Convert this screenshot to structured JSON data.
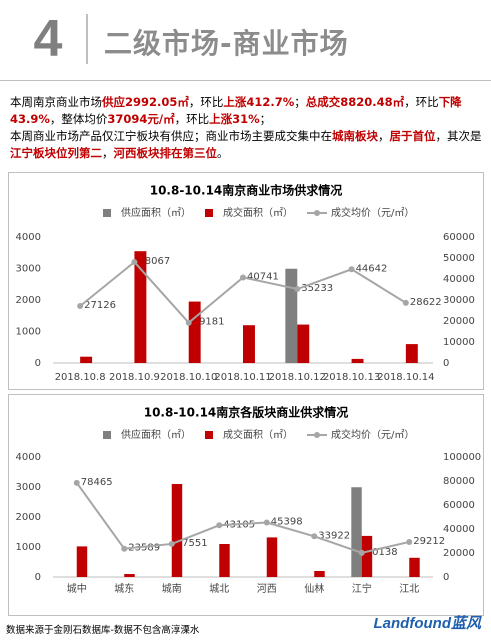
{
  "header": {
    "number": "4",
    "title": "二级市场-商业市场"
  },
  "summary": {
    "highlight_color": "#c00000",
    "paragraphs": [
      [
        {
          "text": "本周南京商业市场"
        },
        {
          "text": "供应2992.05㎡",
          "hl": true
        },
        {
          "text": "，环比"
        },
        {
          "text": "上涨412.7%",
          "hl": true
        },
        {
          "text": "；"
        },
        {
          "text": "总成交8820.48㎡",
          "hl": true
        },
        {
          "text": "，环比"
        },
        {
          "text": "下降43.9%",
          "hl": true
        },
        {
          "text": "，整体均价"
        },
        {
          "text": "37094元/㎡",
          "hl": true
        },
        {
          "text": "，环比"
        },
        {
          "text": "上涨31%",
          "hl": true
        },
        {
          "text": "；"
        }
      ],
      [
        {
          "text": "本周商业市场产品仅江宁板块有供应；商业市场主要成交集中在"
        },
        {
          "text": "城南板块",
          "hl": true
        },
        {
          "text": "，"
        },
        {
          "text": "居于首位",
          "hl": true
        },
        {
          "text": "，其次是"
        },
        {
          "text": "江宁板块位列第二",
          "hl": true
        },
        {
          "text": "，"
        },
        {
          "text": "河西板块排在第三位",
          "hl": true
        },
        {
          "text": "。"
        }
      ]
    ]
  },
  "chart_data": [
    {
      "type": "bar",
      "title": "10.8-10.14南京商业市场供求情况",
      "categories": [
        "2018.10.8",
        "2018.10.9",
        "2018.10.10",
        "2018.10.11",
        "2018.10.12",
        "2018.10.13",
        "2018.10.14"
      ],
      "series": [
        {
          "name": "供应面积（㎡）",
          "color": "#7f7f7f",
          "values": [
            null,
            null,
            null,
            null,
            2992.05,
            null,
            null
          ]
        },
        {
          "name": "成交面积（㎡）",
          "color": "#c00000",
          "values": [
            200,
            3550,
            1950,
            1200,
            1220,
            130,
            600
          ]
        },
        {
          "name": "成交均价（元/㎡）",
          "color": "#a6a6a6",
          "type": "line",
          "axis": "y2",
          "values": [
            27126,
            48067,
            19181,
            40741,
            35233,
            44642,
            28622
          ]
        }
      ],
      "ylim": [
        0,
        4000
      ],
      "yticks": [
        0,
        1000,
        2000,
        3000,
        4000
      ],
      "y2lim": [
        0,
        60000
      ],
      "y2ticks": [
        0,
        10000,
        20000,
        30000,
        40000,
        50000,
        60000
      ]
    },
    {
      "type": "bar",
      "title": "10.8-10.14南京各版块商业供求情况",
      "categories": [
        "城中",
        "城东",
        "城南",
        "城北",
        "河西",
        "仙林",
        "江宁",
        "江北"
      ],
      "series": [
        {
          "name": "供应面积（㎡）",
          "color": "#7f7f7f",
          "values": [
            null,
            null,
            null,
            null,
            null,
            null,
            2992.05,
            null
          ]
        },
        {
          "name": "成交面积（㎡）",
          "color": "#c00000",
          "values": [
            1020,
            100,
            3100,
            1100,
            1320,
            200,
            1370,
            640
          ]
        },
        {
          "name": "成交均价（元/㎡）",
          "color": "#a6a6a6",
          "type": "line",
          "axis": "y2",
          "values": [
            78465,
            23589,
            27551,
            43105,
            45398,
            33922,
            20138,
            29212
          ]
        }
      ],
      "ylim": [
        0,
        4000
      ],
      "yticks": [
        0,
        1000,
        2000,
        3000,
        4000
      ],
      "y2lim": [
        0,
        100000
      ],
      "y2ticks": [
        0,
        20000,
        40000,
        60000,
        80000,
        100000
      ]
    }
  ],
  "footer": {
    "source": "数据来源于金刚石数据库-数据不包含高淳溧水",
    "logo": "Landfound",
    "logo_cn": "蓝风"
  }
}
